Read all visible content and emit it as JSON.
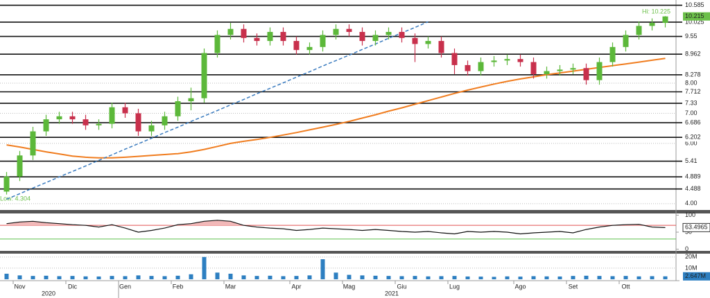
{
  "chart_data": {
    "type": "candlestick",
    "categories": [
      null,
      "Nov",
      null,
      null,
      null,
      "Dic",
      null,
      null,
      null,
      "Gen",
      null,
      null,
      null,
      "Feb",
      null,
      null,
      null,
      "Mar",
      null,
      null,
      null,
      null,
      "Apr",
      null,
      null,
      null,
      "Mag",
      null,
      null,
      null,
      "Giu",
      null,
      null,
      null,
      "Lug",
      null,
      null,
      null,
      null,
      "Ago",
      null,
      null,
      null,
      "Set",
      null,
      null,
      null,
      "Ott",
      null,
      null,
      null
    ],
    "years": [
      "2020",
      "2021"
    ],
    "ohlc": {
      "open": [
        4.4,
        4.9,
        5.6,
        6.4,
        6.8,
        6.9,
        6.8,
        6.6,
        6.65,
        7.2,
        7.0,
        6.4,
        6.6,
        6.9,
        7.4,
        7.5,
        9.0,
        9.6,
        9.8,
        9.5,
        9.4,
        9.7,
        9.4,
        9.1,
        9.2,
        9.6,
        9.8,
        9.7,
        9.4,
        9.6,
        9.7,
        9.5,
        9.3,
        9.4,
        9.0,
        8.6,
        8.4,
        8.7,
        8.75,
        8.8,
        8.7,
        8.3,
        8.4,
        8.45,
        8.5,
        8.1,
        8.7,
        9.2,
        9.6,
        9.9,
        10.0
      ],
      "high": [
        5.05,
        5.75,
        6.55,
        6.95,
        7.05,
        7.05,
        6.95,
        6.8,
        7.35,
        7.35,
        7.15,
        6.75,
        7.05,
        7.55,
        7.85,
        9.15,
        9.75,
        10.0,
        9.95,
        9.65,
        9.85,
        9.85,
        9.55,
        9.35,
        9.75,
        9.95,
        9.95,
        9.85,
        9.75,
        9.85,
        9.85,
        9.65,
        9.55,
        9.55,
        9.15,
        8.75,
        8.85,
        8.9,
        8.95,
        8.95,
        8.85,
        8.55,
        8.6,
        8.65,
        8.65,
        8.85,
        9.35,
        9.75,
        10.05,
        10.15,
        10.225
      ],
      "low": [
        4.304,
        4.75,
        5.45,
        6.25,
        6.65,
        6.65,
        6.45,
        6.45,
        6.5,
        6.85,
        6.25,
        6.25,
        6.45,
        6.75,
        7.1,
        7.35,
        8.85,
        9.45,
        9.35,
        9.25,
        9.25,
        9.25,
        8.95,
        8.95,
        9.05,
        9.45,
        9.55,
        9.25,
        9.25,
        9.45,
        9.35,
        8.7,
        9.15,
        8.85,
        8.3,
        8.25,
        8.25,
        8.55,
        8.6,
        8.55,
        8.15,
        8.15,
        8.25,
        8.3,
        7.95,
        7.95,
        8.55,
        9.05,
        9.45,
        9.75,
        9.85
      ],
      "close": [
        4.9,
        5.6,
        6.4,
        6.8,
        6.9,
        6.8,
        6.6,
        6.65,
        7.2,
        7.0,
        6.4,
        6.6,
        6.9,
        7.4,
        7.5,
        9.0,
        9.6,
        9.8,
        9.5,
        9.4,
        9.7,
        9.4,
        9.1,
        9.2,
        9.6,
        9.8,
        9.7,
        9.4,
        9.6,
        9.7,
        9.5,
        9.3,
        9.4,
        9.0,
        8.6,
        8.4,
        8.7,
        8.75,
        8.8,
        8.7,
        8.3,
        8.4,
        8.45,
        8.5,
        8.1,
        8.7,
        9.2,
        9.6,
        9.9,
        10.0,
        10.215
      ]
    },
    "up_color": "#5cb83a",
    "down_color": "#c8304c",
    "moving_average": {
      "color": "#f07c1e",
      "values": [
        5.95,
        5.88,
        5.8,
        5.72,
        5.65,
        5.58,
        5.54,
        5.52,
        5.52,
        5.54,
        5.57,
        5.6,
        5.63,
        5.66,
        5.72,
        5.8,
        5.9,
        6.0,
        6.07,
        6.13,
        6.2,
        6.28,
        6.36,
        6.45,
        6.54,
        6.63,
        6.73,
        6.84,
        6.95,
        7.07,
        7.18,
        7.3,
        7.42,
        7.54,
        7.66,
        7.77,
        7.87,
        7.97,
        8.06,
        8.14,
        8.21,
        8.28,
        8.34,
        8.4,
        8.46,
        8.52,
        8.58,
        8.64,
        8.7,
        8.76,
        8.82
      ]
    },
    "trendline": {
      "color": "#3a7bbf",
      "values": [
        4.15,
        4.33,
        4.52,
        4.7,
        4.89,
        5.07,
        5.25,
        5.44,
        5.62,
        5.81,
        5.99,
        6.17,
        6.36,
        6.54,
        6.73,
        6.91,
        7.09,
        7.28,
        7.46,
        7.65,
        7.83,
        8.01,
        8.2,
        8.38,
        8.57,
        8.75,
        8.93,
        9.12,
        9.3,
        9.49,
        9.67,
        9.85,
        10.04,
        null,
        null,
        null,
        null,
        null,
        null,
        null,
        null,
        null,
        null,
        null,
        null,
        null,
        null,
        null,
        null,
        null,
        null
      ]
    },
    "levels": [
      10.585,
      10.025,
      9.55,
      8.962,
      8.278,
      7.712,
      7.33,
      6.686,
      6.202,
      5.41,
      4.889,
      4.488
    ],
    "ylim": [
      3.79,
      10.76
    ],
    "yticks": [
      {
        "value": 8,
        "label": "8.00"
      },
      {
        "value": 7,
        "label": "7.00"
      },
      {
        "value": 6,
        "label": "6.00"
      },
      {
        "value": 4,
        "label": "4.00"
      }
    ],
    "last_price": 10.215,
    "hi_label": "Hi: 10.225",
    "low_label": "Low: 4.304",
    "rsi": {
      "color": "#111111",
      "values": [
        75,
        80,
        82,
        78,
        75,
        72,
        70,
        65,
        72,
        62,
        50,
        55,
        62,
        72,
        75,
        82,
        85,
        82,
        70,
        65,
        62,
        60,
        55,
        58,
        62,
        60,
        58,
        55,
        58,
        55,
        52,
        50,
        52,
        48,
        45,
        52,
        50,
        52,
        50,
        45,
        48,
        50,
        52,
        48,
        58,
        65,
        70,
        72,
        73,
        65,
        63.4965
      ],
      "ylim": [
        -5,
        105
      ],
      "yticks": [
        100,
        50,
        0
      ],
      "levels": [
        {
          "value": 70,
          "color": "#e05050"
        },
        {
          "value": 30,
          "color": "#5cc04a"
        }
      ]
    },
    "volume": {
      "color": "#2d7fc1",
      "values": [
        5,
        3.5,
        3,
        3.2,
        2.8,
        3,
        2.6,
        2.5,
        3,
        2.8,
        3.5,
        3,
        2.8,
        3.2,
        4.5,
        20,
        6,
        5,
        3.5,
        3,
        3.2,
        2.8,
        3,
        3.5,
        18,
        6,
        4,
        3.5,
        3.2,
        3,
        2.8,
        3,
        2.6,
        2.8,
        3,
        2.5,
        2.4,
        2.2,
        2.6,
        2.4,
        2.8,
        2.6,
        2.5,
        3,
        3.2,
        3,
        2.8,
        3,
        2.6,
        2.8,
        2.647
      ],
      "ylim": [
        0,
        23
      ],
      "yticks": [
        {
          "value": 20,
          "label": "20M"
        },
        {
          "value": 10,
          "label": "10M"
        }
      ],
      "last_label": "2.647M"
    }
  }
}
